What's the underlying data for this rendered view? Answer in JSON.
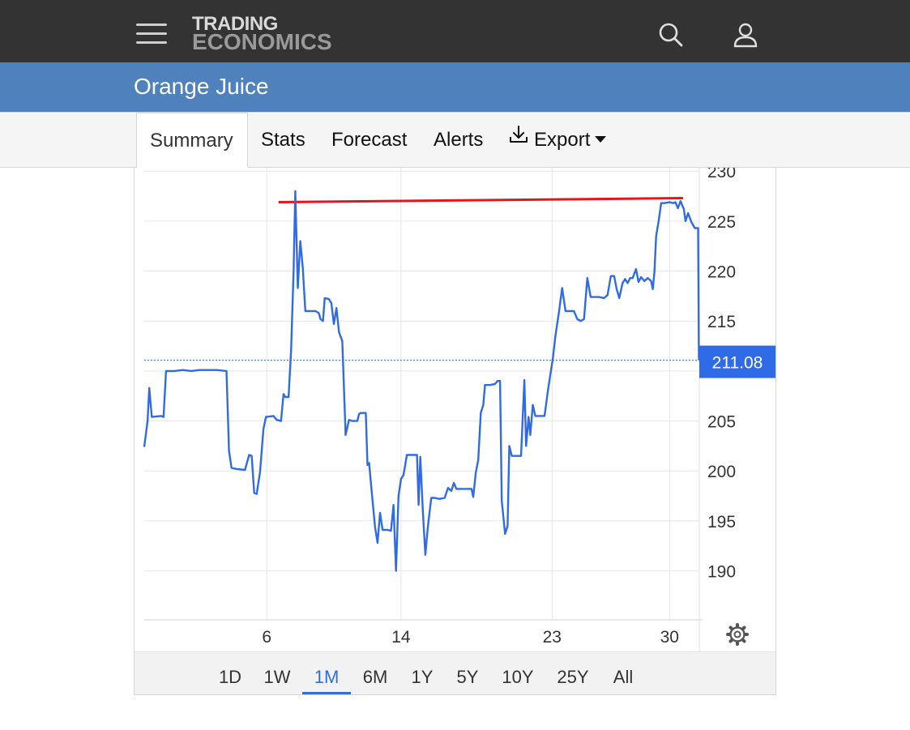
{
  "header": {
    "logo_line1": "TRADING",
    "logo_line2": "ECONOMICS",
    "menu_icon": "hamburger-menu-icon",
    "search_icon": "search-icon",
    "user_icon": "user-icon"
  },
  "page": {
    "title": "Orange Juice"
  },
  "tabs": [
    {
      "label": "Summary",
      "active": true
    },
    {
      "label": "Stats"
    },
    {
      "label": "Forecast"
    },
    {
      "label": "Alerts"
    },
    {
      "label": "Export",
      "icon": "download-icon"
    }
  ],
  "chart_data": {
    "type": "line",
    "y_ticks": [
      230,
      225,
      220,
      215,
      210,
      205,
      200,
      195,
      190
    ],
    "y_labels": [
      "230",
      "225",
      "220",
      "215",
      "",
      "205",
      "200",
      "195",
      "190"
    ],
    "ylim": [
      185.1,
      230.1
    ],
    "x_ticks": [
      {
        "label": "6",
        "x": 6
      },
      {
        "label": "14",
        "x": 14
      },
      {
        "label": "23",
        "x": 23
      },
      {
        "label": "30",
        "x": 30
      }
    ],
    "xlim": [
      -1.3,
      31.0
    ],
    "last_value": 211.08,
    "last_value_label": "211.08",
    "colors": {
      "line": "#2f6be6",
      "trend": "#e8141c",
      "last_badge": "#2f6be6",
      "grid": "#e6e6e6"
    },
    "trend_line": {
      "from": [
        6.7,
        226.9
      ],
      "to": [
        30.8,
        227.3
      ]
    },
    "settings_icon": "gear-icon",
    "series": [
      {
        "values": [
          [
            -1.3,
            202.4
          ],
          [
            -1.1,
            205.0
          ],
          [
            -1.0,
            208.3
          ],
          [
            -0.85,
            205.4
          ],
          [
            -0.3,
            205.5
          ],
          [
            -0.15,
            205.4
          ],
          [
            0.0,
            210.0
          ],
          [
            0.5,
            210.0
          ],
          [
            1.0,
            210.1
          ],
          [
            1.5,
            210.0
          ],
          [
            2.0,
            210.1
          ],
          [
            2.5,
            210.1
          ],
          [
            3.0,
            210.1
          ],
          [
            3.6,
            210.0
          ],
          [
            3.75,
            202.0
          ],
          [
            3.9,
            200.3
          ],
          [
            4.2,
            200.2
          ],
          [
            4.7,
            200.1
          ],
          [
            4.95,
            201.6
          ],
          [
            5.1,
            201.5
          ],
          [
            5.25,
            197.8
          ],
          [
            5.4,
            197.7
          ],
          [
            5.6,
            199.9
          ],
          [
            5.8,
            204.2
          ],
          [
            5.95,
            205.4
          ],
          [
            6.4,
            205.5
          ],
          [
            6.6,
            205.1
          ],
          [
            6.85,
            205.0
          ],
          [
            7.0,
            207.7
          ],
          [
            7.1,
            207.4
          ],
          [
            7.3,
            207.4
          ],
          [
            7.45,
            212.0
          ],
          [
            7.6,
            220.0
          ],
          [
            7.7,
            228.0
          ],
          [
            7.85,
            218.3
          ],
          [
            8.0,
            223.0
          ],
          [
            8.15,
            220.3
          ],
          [
            8.3,
            216.0
          ],
          [
            8.6,
            216.0
          ],
          [
            8.9,
            216.0
          ],
          [
            9.1,
            215.8
          ],
          [
            9.2,
            215.2
          ],
          [
            9.35,
            215.0
          ],
          [
            9.45,
            217.3
          ],
          [
            9.7,
            217.2
          ],
          [
            9.85,
            216.8
          ],
          [
            10.0,
            214.7
          ],
          [
            10.15,
            216.3
          ],
          [
            10.3,
            213.9
          ],
          [
            10.5,
            213.0
          ],
          [
            10.7,
            203.6
          ],
          [
            10.9,
            205.1
          ],
          [
            11.1,
            205.0
          ],
          [
            11.4,
            205.0
          ],
          [
            11.5,
            205.7
          ],
          [
            11.6,
            205.8
          ],
          [
            11.9,
            205.8
          ],
          [
            12.0,
            200.6
          ],
          [
            12.1,
            200.8
          ],
          [
            12.25,
            198.0
          ],
          [
            12.45,
            194.4
          ],
          [
            12.6,
            192.8
          ],
          [
            12.75,
            195.8
          ],
          [
            12.9,
            194.1
          ],
          [
            13.2,
            194.1
          ],
          [
            13.4,
            194.0
          ],
          [
            13.55,
            196.6
          ],
          [
            13.7,
            190.0
          ],
          [
            13.85,
            197.5
          ],
          [
            14.0,
            199.2
          ],
          [
            14.15,
            199.6
          ],
          [
            14.35,
            201.6
          ],
          [
            14.6,
            201.6
          ],
          [
            14.8,
            201.6
          ],
          [
            14.95,
            201.6
          ],
          [
            15.05,
            196.6
          ],
          [
            15.15,
            201.4
          ],
          [
            15.3,
            196.0
          ],
          [
            15.45,
            191.6
          ],
          [
            15.6,
            194.4
          ],
          [
            15.8,
            197.3
          ],
          [
            16.0,
            197.3
          ],
          [
            16.3,
            197.2
          ],
          [
            16.6,
            197.3
          ],
          [
            16.8,
            198.3
          ],
          [
            17.0,
            198.0
          ],
          [
            17.15,
            198.8
          ],
          [
            17.3,
            198.2
          ],
          [
            17.6,
            198.2
          ],
          [
            17.9,
            198.2
          ],
          [
            18.2,
            198.2
          ],
          [
            18.3,
            197.4
          ],
          [
            18.45,
            199.8
          ],
          [
            18.6,
            201.1
          ],
          [
            18.75,
            205.8
          ],
          [
            18.9,
            206.6
          ],
          [
            19.0,
            208.6
          ],
          [
            19.3,
            208.6
          ],
          [
            19.6,
            208.7
          ],
          [
            19.75,
            209.0
          ],
          [
            19.9,
            209.0
          ],
          [
            20.0,
            197.0
          ],
          [
            20.1,
            195.4
          ],
          [
            20.2,
            193.7
          ],
          [
            20.35,
            194.5
          ],
          [
            20.45,
            202.5
          ],
          [
            20.6,
            201.5
          ],
          [
            20.9,
            201.5
          ],
          [
            21.15,
            201.5
          ],
          [
            21.35,
            209.1
          ],
          [
            21.45,
            202.5
          ],
          [
            21.6,
            205.4
          ],
          [
            21.7,
            203.6
          ],
          [
            21.85,
            206.6
          ],
          [
            22.0,
            205.5
          ],
          [
            22.3,
            205.5
          ],
          [
            22.55,
            205.5
          ],
          [
            22.75,
            208.0
          ],
          [
            23.05,
            211.3
          ],
          [
            23.2,
            213.5
          ],
          [
            23.4,
            215.8
          ],
          [
            23.6,
            218.3
          ],
          [
            23.8,
            216.0
          ],
          [
            24.0,
            216.0
          ],
          [
            24.3,
            216.0
          ],
          [
            24.5,
            215.2
          ],
          [
            24.7,
            215.0
          ],
          [
            24.9,
            215.2
          ],
          [
            25.1,
            219.3
          ],
          [
            25.3,
            217.4
          ],
          [
            25.5,
            217.4
          ],
          [
            25.8,
            217.4
          ],
          [
            26.1,
            217.3
          ],
          [
            26.3,
            217.6
          ],
          [
            26.5,
            219.5
          ],
          [
            26.7,
            219.5
          ],
          [
            26.85,
            218.2
          ],
          [
            27.0,
            217.3
          ],
          [
            27.2,
            218.8
          ],
          [
            27.35,
            219.2
          ],
          [
            27.5,
            218.8
          ],
          [
            27.65,
            219.3
          ],
          [
            27.8,
            219.3
          ],
          [
            28.0,
            220.2
          ],
          [
            28.15,
            218.9
          ],
          [
            28.3,
            219.4
          ],
          [
            28.5,
            219.0
          ],
          [
            28.7,
            219.3
          ],
          [
            28.9,
            219.0
          ],
          [
            29.0,
            218.2
          ],
          [
            29.1,
            219.9
          ],
          [
            29.2,
            223.5
          ],
          [
            29.35,
            225.0
          ],
          [
            29.5,
            226.8
          ],
          [
            29.7,
            226.8
          ],
          [
            30.0,
            226.9
          ],
          [
            30.2,
            226.8
          ],
          [
            30.35,
            226.9
          ],
          [
            30.5,
            226.3
          ],
          [
            30.65,
            227.0
          ],
          [
            30.85,
            226.2
          ],
          [
            30.95,
            225.0
          ],
          [
            31.1,
            225.8
          ],
          [
            31.3,
            224.9
          ],
          [
            31.5,
            224.3
          ],
          [
            31.7,
            224.3
          ],
          [
            31.75,
            211.1
          ]
        ]
      }
    ]
  },
  "ranges": [
    {
      "label": "1D"
    },
    {
      "label": "1W"
    },
    {
      "label": "1M",
      "active": true
    },
    {
      "label": "6M"
    },
    {
      "label": "1Y"
    },
    {
      "label": "5Y"
    },
    {
      "label": "10Y"
    },
    {
      "label": "25Y"
    },
    {
      "label": "All"
    }
  ]
}
